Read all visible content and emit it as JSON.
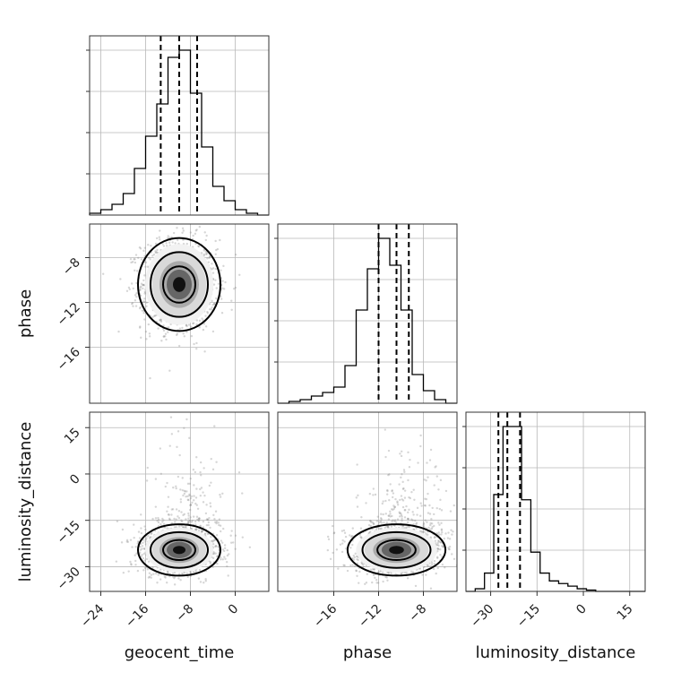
{
  "chart_data": {
    "type": "scatter",
    "parameters": [
      {
        "key": "geocent_time",
        "label": "geocent_time",
        "range": [
          -26,
          6
        ],
        "ticks": [
          -24,
          -16,
          -8,
          0
        ]
      },
      {
        "key": "phase",
        "label": "phase",
        "range": [
          -21,
          -5
        ],
        "ticks": [
          -16,
          -12,
          -8
        ]
      },
      {
        "key": "luminosity_distance",
        "label": "luminosity_distance",
        "range": [
          -38,
          20
        ],
        "ticks": [
          -30,
          -15,
          0,
          15
        ]
      }
    ],
    "histograms": [
      {
        "parameter": "geocent_time",
        "bin_edges": [
          -26,
          -24,
          -22,
          -20,
          -18,
          -16,
          -14,
          -12,
          -10,
          -8,
          -6,
          -4,
          -2,
          0,
          2,
          4,
          6
        ],
        "counts": [
          0.01,
          0.03,
          0.06,
          0.12,
          0.26,
          0.44,
          0.62,
          0.88,
          0.92,
          0.68,
          0.38,
          0.16,
          0.08,
          0.03,
          0.01,
          0
        ],
        "quantiles": [
          -13.3,
          -10.0,
          -6.8
        ]
      },
      {
        "parameter": "phase",
        "bin_edges": [
          -21,
          -20,
          -19,
          -18,
          -17,
          -16,
          -15,
          -14,
          -13,
          -12,
          -11,
          -10,
          -9,
          -8,
          -7,
          -6,
          -5
        ],
        "counts": [
          0,
          0.01,
          0.02,
          0.04,
          0.06,
          0.09,
          0.21,
          0.52,
          0.75,
          0.92,
          0.77,
          0.52,
          0.16,
          0.07,
          0.02,
          0
        ],
        "quantiles": [
          -12.0,
          -10.4,
          -9.3
        ]
      },
      {
        "parameter": "luminosity_distance",
        "bin_edges": [
          -38,
          -35,
          -32,
          -29,
          -26,
          -23,
          -20,
          -17,
          -14,
          -11,
          -8,
          -5,
          -2,
          1,
          4,
          7,
          10,
          13,
          16,
          19,
          20
        ],
        "counts": [
          0,
          0.01,
          0.07,
          0.37,
          0.63,
          0.63,
          0.35,
          0.15,
          0.07,
          0.04,
          0.03,
          0.02,
          0.01,
          0.005,
          0,
          0,
          0,
          0,
          0,
          0
        ],
        "quantiles": [
          -27.5,
          -24.6,
          -20.5
        ]
      }
    ],
    "pairs": [
      {
        "x": "geocent_time",
        "y": "phase",
        "center": [
          -10.0,
          -10.4
        ],
        "spread": [
          3.2,
          1.9
        ]
      },
      {
        "x": "geocent_time",
        "y": "luminosity_distance",
        "center": [
          -10.0,
          -24.6
        ],
        "spread": [
          3.2,
          3.8
        ]
      },
      {
        "x": "phase",
        "y": "luminosity_distance",
        "center": [
          -10.4,
          -24.6
        ],
        "spread": [
          1.9,
          3.8
        ]
      }
    ],
    "grid": true
  }
}
